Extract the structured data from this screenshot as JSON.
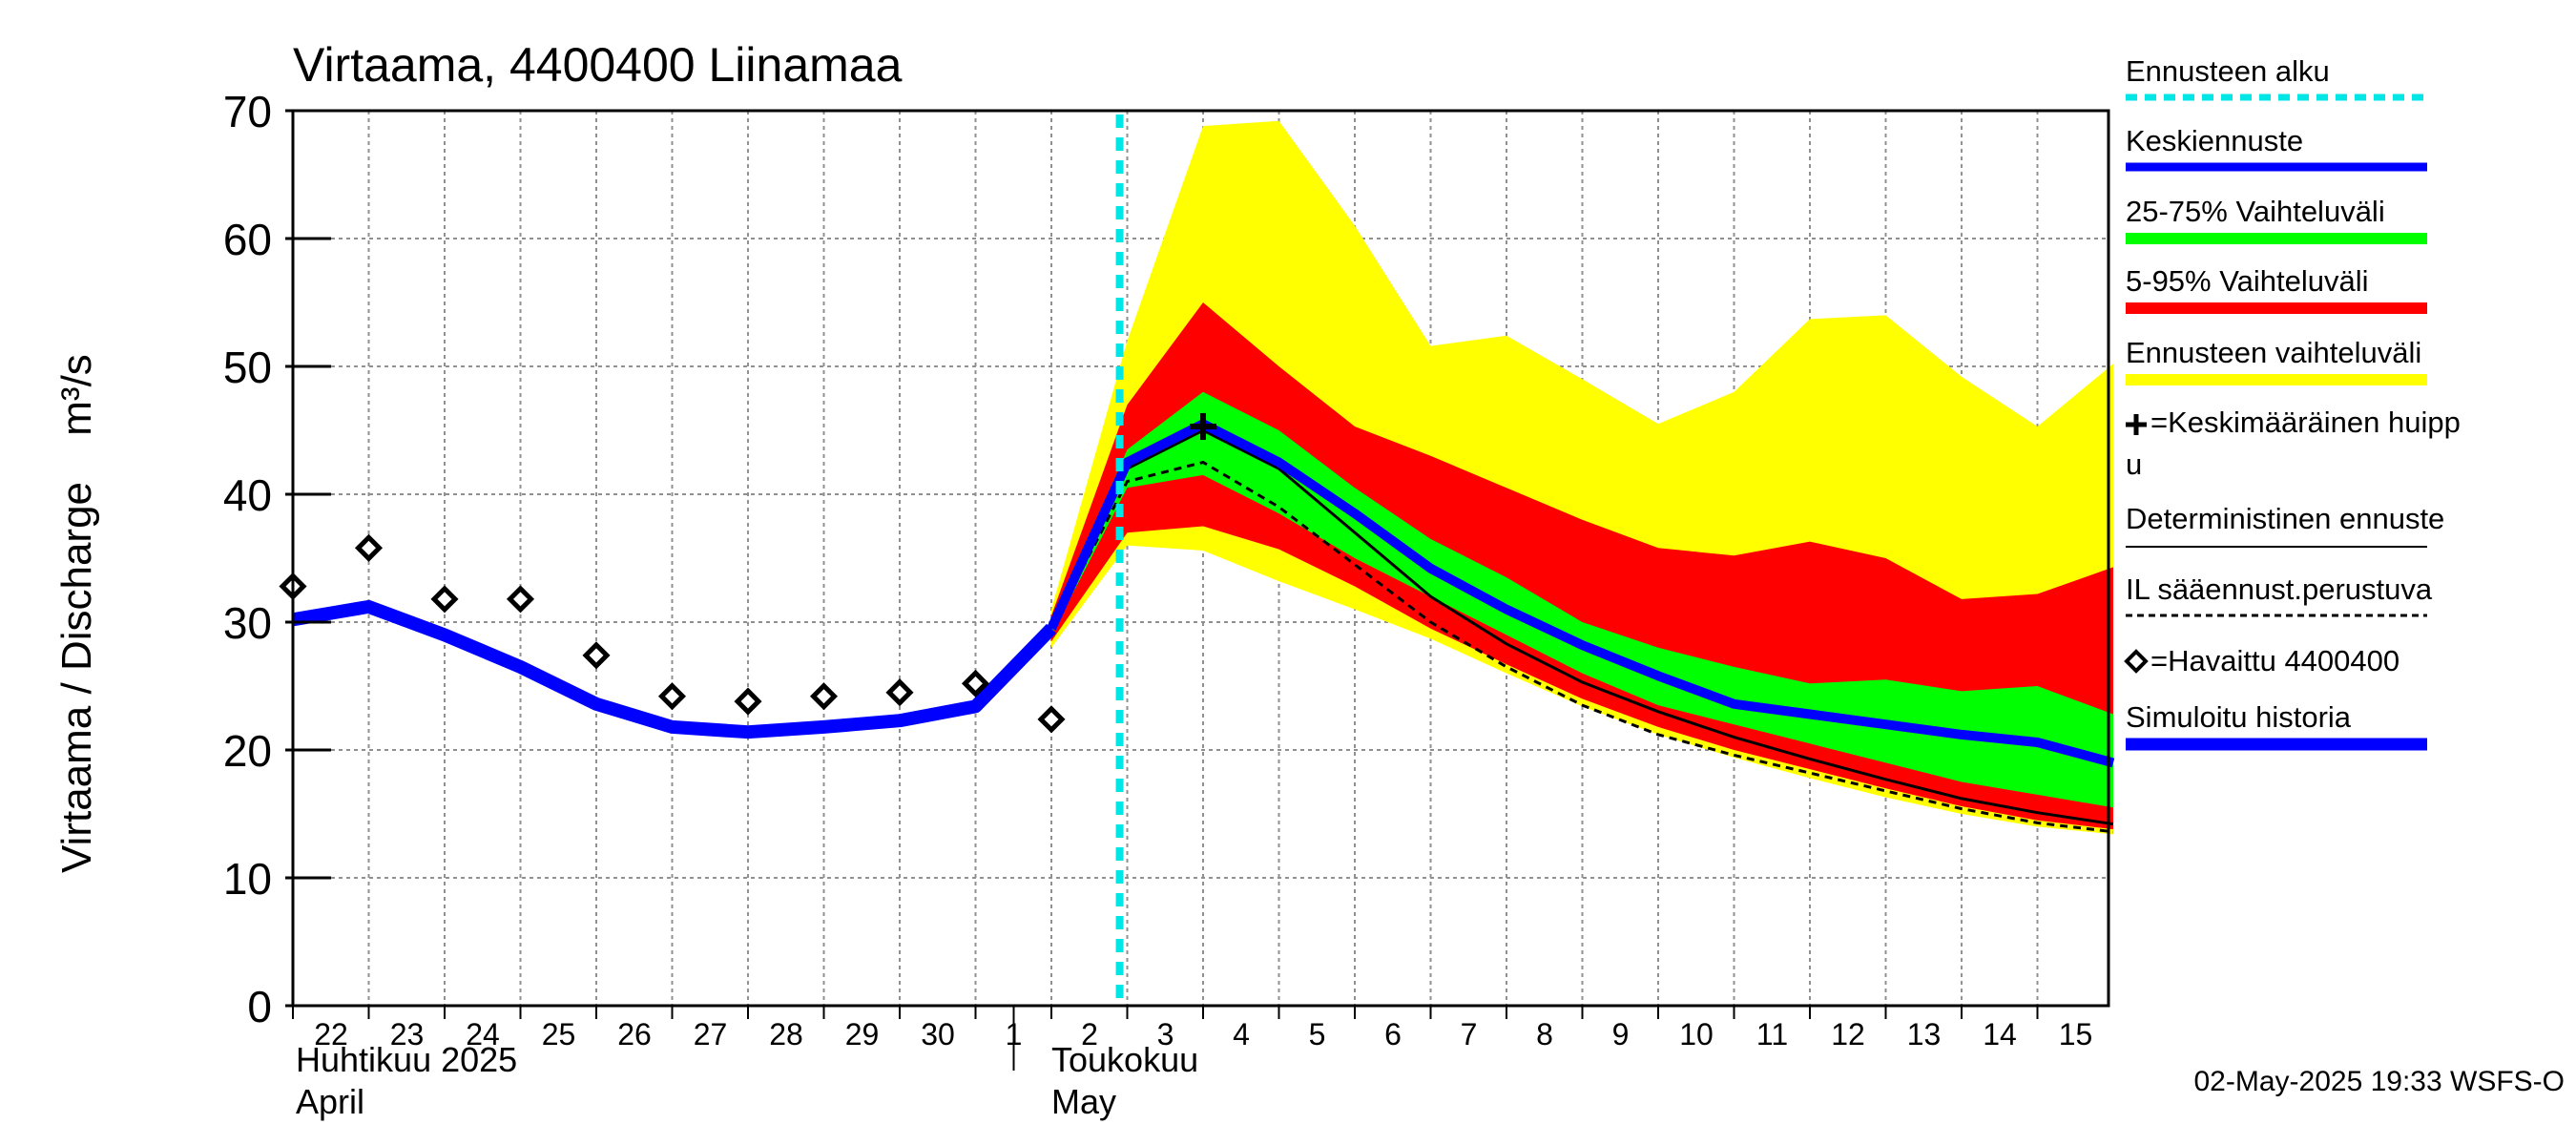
{
  "chart_data": {
    "type": "area",
    "title": "Virtaama, 4400400 Liinamaa",
    "ylabel": "Virtaama / Discharge",
    "yunit": "m³/s",
    "ylim": [
      0,
      70
    ],
    "yticks": [
      0,
      10,
      20,
      30,
      40,
      50,
      60,
      70
    ],
    "x_dates": [
      "22",
      "23",
      "24",
      "25",
      "26",
      "27",
      "28",
      "29",
      "30",
      "1",
      "2",
      "3",
      "4",
      "5",
      "6",
      "7",
      "8",
      "9",
      "10",
      "11",
      "12",
      "13",
      "14",
      "15"
    ],
    "month_labels": {
      "april_fi": "Huhtikuu  2025",
      "april_en": "April",
      "may_fi": "Toukokuu",
      "may_en": "May"
    },
    "forecast_start_day": 10.9,
    "series": {
      "simulated_history": {
        "name": "Simuloitu historia",
        "x": [
          0,
          1,
          2,
          3,
          4,
          5,
          6,
          7,
          8,
          9,
          10
        ],
        "y": [
          30.2,
          31.2,
          29.0,
          26.5,
          23.6,
          21.8,
          21.4,
          21.8,
          22.3,
          23.4,
          29.5
        ]
      },
      "observed": {
        "name": "Havaittu 4400400",
        "x": [
          0,
          1,
          2,
          3,
          4,
          5,
          6,
          7,
          8,
          9,
          10
        ],
        "y": [
          32.8,
          35.8,
          31.8,
          31.8,
          27.4,
          24.2,
          23.8,
          24.2,
          24.5,
          25.2,
          22.4
        ]
      },
      "mean_forecast": {
        "name": "Keskiennuste",
        "x": [
          10,
          11,
          12,
          13,
          14,
          15,
          16,
          17,
          18,
          19,
          20,
          21,
          22,
          23,
          24
        ],
        "y": [
          29.5,
          42.5,
          45.5,
          42.5,
          38.5,
          34.2,
          31.0,
          28.2,
          25.8,
          23.6,
          22.8,
          22.0,
          21.2,
          20.6,
          19.0
        ]
      },
      "deterministic": {
        "name": "Deterministinen ennuste",
        "x": [
          10,
          11,
          12,
          13,
          14,
          15,
          16,
          17,
          18,
          19,
          20,
          21,
          22,
          23,
          24
        ],
        "y": [
          29.5,
          42.0,
          45.0,
          42.0,
          37.0,
          32.0,
          28.3,
          25.3,
          23.0,
          21.0,
          19.3,
          17.7,
          16.2,
          15.1,
          14.2
        ]
      },
      "il_forecast": {
        "name": "IL sääennust.perustuva",
        "x": [
          10,
          11,
          12,
          13,
          14,
          15,
          16,
          17,
          18,
          19,
          20,
          21,
          22,
          23,
          24
        ],
        "y": [
          29.5,
          41.0,
          42.5,
          39.0,
          34.5,
          30.0,
          26.5,
          23.5,
          21.2,
          19.6,
          18.2,
          16.8,
          15.4,
          14.3,
          13.6
        ]
      },
      "peak_marker": {
        "name": "Keskimääräinen huippu",
        "x": 12,
        "y": 45.3
      },
      "band_25_75": {
        "name": "25-75% Vaihteluväli",
        "x": [
          10,
          11,
          12,
          13,
          14,
          15,
          16,
          17,
          18,
          19,
          20,
          21,
          22,
          23,
          24
        ],
        "lower": [
          29.0,
          40.5,
          41.5,
          38.5,
          35.0,
          32.0,
          29.0,
          26.0,
          23.5,
          22.0,
          20.5,
          19.0,
          17.5,
          16.5,
          15.5
        ],
        "upper": [
          30.0,
          43.5,
          48.0,
          45.0,
          40.5,
          36.5,
          33.5,
          30.0,
          28.0,
          26.5,
          25.2,
          25.5,
          24.6,
          25.0,
          22.8
        ]
      },
      "band_5_95": {
        "name": "5-95% Vaihteluväli",
        "x": [
          10,
          11,
          12,
          13,
          14,
          15,
          16,
          17,
          18,
          19,
          20,
          21,
          22,
          23,
          24
        ],
        "lower": [
          28.5,
          37.0,
          37.5,
          35.7,
          32.8,
          29.5,
          26.7,
          24.0,
          21.8,
          20.0,
          18.5,
          17.0,
          15.6,
          14.5,
          13.8
        ],
        "upper": [
          30.5,
          47.0,
          55.0,
          50.0,
          45.3,
          43.0,
          40.5,
          38.0,
          35.8,
          35.2,
          36.3,
          35.0,
          31.8,
          32.2,
          34.3
        ]
      },
      "band_full": {
        "name": "Ennusteen vaihteluväli",
        "x": [
          10,
          11,
          12,
          13,
          14,
          15,
          16,
          17,
          18,
          19,
          20,
          21,
          22,
          23,
          24
        ],
        "lower": [
          28.0,
          36.0,
          35.6,
          33.2,
          31.0,
          28.7,
          26.0,
          23.4,
          21.2,
          19.4,
          17.8,
          16.3,
          15.0,
          14.0,
          13.4
        ],
        "upper": [
          31.0,
          52.0,
          68.8,
          69.2,
          61.0,
          51.6,
          52.4,
          49.0,
          45.5,
          48.0,
          53.7,
          54.0,
          49.2,
          45.3,
          50.2
        ]
      }
    },
    "colors": {
      "band_full": "#ffff00",
      "band_5_95": "#ff0000",
      "band_25_75": "#00ff00",
      "mean": "#0000ff",
      "simulated": "#0000ff",
      "forecast_start": "#00e5e5",
      "deterministic": "#000000",
      "il": "#000000",
      "grid": "#909090"
    },
    "legend": [
      "Ennusteen alku",
      "Keskiennuste",
      "25-75% Vaihteluväli",
      "5-95% Vaihteluväli",
      "Ennusteen vaihteluväli",
      "=Keskimääräinen huipp",
      "u",
      "Deterministinen ennuste",
      "IL sääennust.perustuva",
      "=Havaittu 4400400",
      "Simuloitu historia"
    ],
    "timestamp": "02-May-2025 19:33 WSFS-O"
  }
}
